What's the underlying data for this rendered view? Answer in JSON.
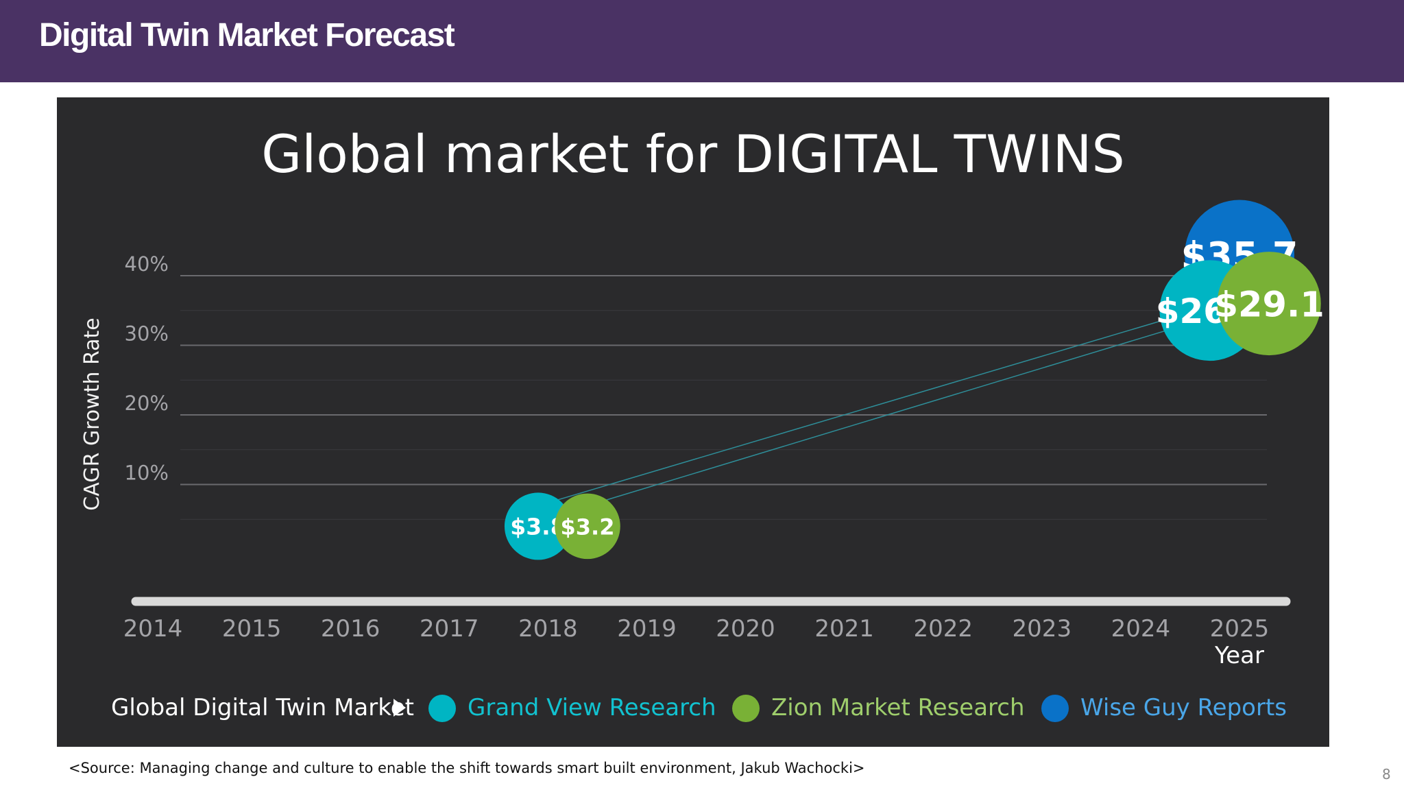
{
  "header": {
    "title": "Digital Twin Market Forecast"
  },
  "chart_data": {
    "type": "scatter",
    "title": "Global market for DIGITAL TWINS",
    "xlabel": "Year",
    "ylabel": "CAGR  Growth Rate",
    "x_ticks": [
      "2014",
      "2015",
      "2016",
      "2017",
      "2018",
      "2019",
      "2020",
      "2021",
      "2022",
      "2023",
      "2024",
      "2025"
    ],
    "xlim": [
      2014,
      2025
    ],
    "y_ticks": [
      "10%",
      "20%",
      "30%",
      "40%"
    ],
    "ylim": [
      0,
      40
    ],
    "grid": true,
    "legend_lead": "Global Digital Twin Market",
    "legend_placement": "bottom",
    "series": [
      {
        "name": "Grand View Research",
        "color": "#00b5c3",
        "points": [
          {
            "x": 2017.9,
            "y": 4,
            "label": "$3.8"
          },
          {
            "x": 2024.7,
            "y": 35,
            "label": "$26.1"
          }
        ]
      },
      {
        "name": "Zion Market Research",
        "color": "#79b136",
        "points": [
          {
            "x": 2018.4,
            "y": 4,
            "label": "$3.2"
          },
          {
            "x": 2025.3,
            "y": 36,
            "label": "$29.1"
          }
        ]
      },
      {
        "name": "Wise Guy Reports",
        "color": "#0a72c8",
        "points": [
          {
            "x": 2025.0,
            "y": 43,
            "label": "$35.7"
          }
        ]
      }
    ]
  },
  "footer": {
    "source": "<Source: Managing change and culture to enable the shift towards smart built environment, Jakub Wachocki>",
    "page_number": "8"
  }
}
